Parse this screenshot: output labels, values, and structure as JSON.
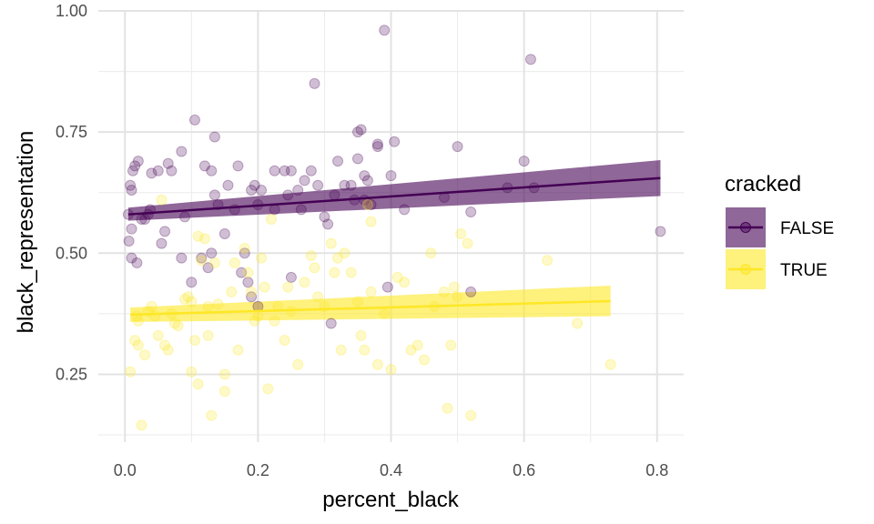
{
  "chart_data": {
    "type": "scatter",
    "title": "",
    "xlabel": "percent_black",
    "ylabel": "black_representation",
    "xlim": [
      -0.04,
      0.84
    ],
    "ylim": [
      0.11,
      1.0
    ],
    "x_ticks": [
      0.0,
      0.2,
      0.4,
      0.6,
      0.8
    ],
    "x_tick_labels": [
      "0.0",
      "0.2",
      "0.4",
      "0.6",
      "0.8"
    ],
    "y_ticks": [
      0.25,
      0.5,
      0.75,
      1.0
    ],
    "y_tick_labels": [
      "0.25",
      "0.50",
      "0.75",
      "1.00"
    ],
    "grid": true,
    "legend": {
      "title": "cracked",
      "position": "right"
    },
    "series": [
      {
        "name": "FALSE",
        "color": "#440154",
        "points": [
          [
            0.005,
            0.58
          ],
          [
            0.008,
            0.64
          ],
          [
            0.01,
            0.63
          ],
          [
            0.006,
            0.525
          ],
          [
            0.01,
            0.49
          ],
          [
            0.01,
            0.55
          ],
          [
            0.012,
            0.67
          ],
          [
            0.015,
            0.68
          ],
          [
            0.02,
            0.69
          ],
          [
            0.018,
            0.48
          ],
          [
            0.025,
            0.57
          ],
          [
            0.03,
            0.57
          ],
          [
            0.035,
            0.58
          ],
          [
            0.038,
            0.59
          ],
          [
            0.04,
            0.665
          ],
          [
            0.05,
            0.67
          ],
          [
            0.055,
            0.52
          ],
          [
            0.06,
            0.545
          ],
          [
            0.065,
            0.685
          ],
          [
            0.07,
            0.67
          ],
          [
            0.085,
            0.71
          ],
          [
            0.09,
            0.575
          ],
          [
            0.085,
            0.49
          ],
          [
            0.1,
            0.44
          ],
          [
            0.105,
            0.775
          ],
          [
            0.12,
            0.68
          ],
          [
            0.115,
            0.49
          ],
          [
            0.13,
            0.5
          ],
          [
            0.125,
            0.47
          ],
          [
            0.135,
            0.74
          ],
          [
            0.13,
            0.67
          ],
          [
            0.135,
            0.62
          ],
          [
            0.14,
            0.6
          ],
          [
            0.15,
            0.54
          ],
          [
            0.155,
            0.64
          ],
          [
            0.165,
            0.59
          ],
          [
            0.17,
            0.68
          ],
          [
            0.175,
            0.46
          ],
          [
            0.18,
            0.5
          ],
          [
            0.185,
            0.44
          ],
          [
            0.19,
            0.41
          ],
          [
            0.19,
            0.63
          ],
          [
            0.195,
            0.64
          ],
          [
            0.2,
            0.6
          ],
          [
            0.205,
            0.63
          ],
          [
            0.2,
            0.39
          ],
          [
            0.225,
            0.67
          ],
          [
            0.225,
            0.59
          ],
          [
            0.24,
            0.67
          ],
          [
            0.245,
            0.62
          ],
          [
            0.25,
            0.67
          ],
          [
            0.25,
            0.45
          ],
          [
            0.26,
            0.63
          ],
          [
            0.265,
            0.59
          ],
          [
            0.27,
            0.65
          ],
          [
            0.28,
            0.67
          ],
          [
            0.285,
            0.85
          ],
          [
            0.29,
            0.64
          ],
          [
            0.3,
            0.575
          ],
          [
            0.305,
            0.56
          ],
          [
            0.31,
            0.355
          ],
          [
            0.315,
            0.62
          ],
          [
            0.32,
            0.69
          ],
          [
            0.33,
            0.64
          ],
          [
            0.34,
            0.64
          ],
          [
            0.345,
            0.61
          ],
          [
            0.35,
            0.75
          ],
          [
            0.35,
            0.695
          ],
          [
            0.355,
            0.755
          ],
          [
            0.36,
            0.66
          ],
          [
            0.365,
            0.65
          ],
          [
            0.36,
            0.61
          ],
          [
            0.37,
            0.6
          ],
          [
            0.38,
            0.72
          ],
          [
            0.38,
            0.725
          ],
          [
            0.39,
            0.96
          ],
          [
            0.395,
            0.43
          ],
          [
            0.4,
            0.66
          ],
          [
            0.405,
            0.73
          ],
          [
            0.42,
            0.59
          ],
          [
            0.48,
            0.615
          ],
          [
            0.5,
            0.72
          ],
          [
            0.52,
            0.585
          ],
          [
            0.52,
            0.42
          ],
          [
            0.575,
            0.635
          ],
          [
            0.6,
            0.69
          ],
          [
            0.61,
            0.9
          ],
          [
            0.615,
            0.635
          ],
          [
            0.805,
            0.545
          ]
        ],
        "trend": {
          "x": [
            0.005,
            0.805
          ],
          "y": [
            0.58,
            0.655
          ],
          "ci_lower": [
            0.567,
            0.618
          ],
          "ci_upper": [
            0.594,
            0.692
          ]
        }
      },
      {
        "name": "TRUE",
        "color": "#fde725",
        "points": [
          [
            0.008,
            0.255
          ],
          [
            0.015,
            0.32
          ],
          [
            0.02,
            0.31
          ],
          [
            0.018,
            0.37
          ],
          [
            0.02,
            0.36
          ],
          [
            0.025,
            0.145
          ],
          [
            0.03,
            0.29
          ],
          [
            0.035,
            0.38
          ],
          [
            0.04,
            0.39
          ],
          [
            0.045,
            0.37
          ],
          [
            0.05,
            0.33
          ],
          [
            0.055,
            0.61
          ],
          [
            0.06,
            0.31
          ],
          [
            0.065,
            0.3
          ],
          [
            0.07,
            0.375
          ],
          [
            0.075,
            0.355
          ],
          [
            0.08,
            0.35
          ],
          [
            0.09,
            0.405
          ],
          [
            0.095,
            0.41
          ],
          [
            0.1,
            0.4
          ],
          [
            0.1,
            0.255
          ],
          [
            0.105,
            0.32
          ],
          [
            0.11,
            0.23
          ],
          [
            0.11,
            0.535
          ],
          [
            0.115,
            0.485
          ],
          [
            0.12,
            0.53
          ],
          [
            0.125,
            0.39
          ],
          [
            0.125,
            0.33
          ],
          [
            0.13,
            0.165
          ],
          [
            0.135,
            0.48
          ],
          [
            0.14,
            0.395
          ],
          [
            0.15,
            0.25
          ],
          [
            0.15,
            0.215
          ],
          [
            0.16,
            0.42
          ],
          [
            0.165,
            0.48
          ],
          [
            0.17,
            0.3
          ],
          [
            0.18,
            0.51
          ],
          [
            0.185,
            0.46
          ],
          [
            0.19,
            0.42
          ],
          [
            0.195,
            0.36
          ],
          [
            0.2,
            0.37
          ],
          [
            0.205,
            0.49
          ],
          [
            0.21,
            0.43
          ],
          [
            0.215,
            0.22
          ],
          [
            0.22,
            0.57
          ],
          [
            0.225,
            0.36
          ],
          [
            0.23,
            0.39
          ],
          [
            0.24,
            0.32
          ],
          [
            0.245,
            0.43
          ],
          [
            0.25,
            0.38
          ],
          [
            0.26,
            0.27
          ],
          [
            0.27,
            0.44
          ],
          [
            0.28,
            0.495
          ],
          [
            0.285,
            0.47
          ],
          [
            0.29,
            0.41
          ],
          [
            0.3,
            0.39
          ],
          [
            0.31,
            0.52
          ],
          [
            0.315,
            0.46
          ],
          [
            0.32,
            0.49
          ],
          [
            0.325,
            0.3
          ],
          [
            0.33,
            0.5
          ],
          [
            0.34,
            0.46
          ],
          [
            0.35,
            0.4
          ],
          [
            0.355,
            0.33
          ],
          [
            0.36,
            0.3
          ],
          [
            0.365,
            0.6
          ],
          [
            0.37,
            0.565
          ],
          [
            0.37,
            0.42
          ],
          [
            0.38,
            0.27
          ],
          [
            0.39,
            0.375
          ],
          [
            0.4,
            0.26
          ],
          [
            0.41,
            0.45
          ],
          [
            0.42,
            0.44
          ],
          [
            0.43,
            0.3
          ],
          [
            0.44,
            0.31
          ],
          [
            0.45,
            0.28
          ],
          [
            0.46,
            0.5
          ],
          [
            0.465,
            0.39
          ],
          [
            0.48,
            0.42
          ],
          [
            0.485,
            0.18
          ],
          [
            0.49,
            0.31
          ],
          [
            0.495,
            0.43
          ],
          [
            0.5,
            0.41
          ],
          [
            0.505,
            0.54
          ],
          [
            0.515,
            0.52
          ],
          [
            0.52,
            0.165
          ],
          [
            0.635,
            0.485
          ],
          [
            0.68,
            0.355
          ],
          [
            0.73,
            0.27
          ]
        ],
        "trend": {
          "x": [
            0.008,
            0.73
          ],
          "y": [
            0.373,
            0.401
          ],
          "ci_lower": [
            0.358,
            0.37
          ],
          "ci_upper": [
            0.388,
            0.433
          ]
        }
      }
    ]
  }
}
